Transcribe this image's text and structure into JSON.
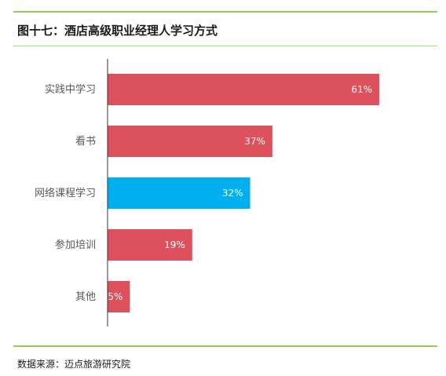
{
  "header": {
    "title": "图十七：酒店高级职业经理人学习方式"
  },
  "footer": {
    "source": "数据来源：迈点旅游研究院"
  },
  "colors": {
    "bar_default": "#dd515c",
    "bar_highlight": "#00b0ee",
    "rule": "#8fce5a",
    "axis": "#333333"
  },
  "chart_data": {
    "type": "bar",
    "orientation": "horizontal",
    "title": "",
    "xlabel": "",
    "ylabel": "",
    "xlim": [
      0,
      70
    ],
    "grid": false,
    "legend": "none",
    "categories": [
      "实践中学习",
      "看书",
      "网络课程学习",
      "参加培训",
      "其他"
    ],
    "values": [
      61,
      37,
      32,
      19,
      5
    ],
    "data_labels": [
      "61%",
      "37%",
      "32%",
      "19%",
      "5%"
    ],
    "highlight_index": 2
  }
}
